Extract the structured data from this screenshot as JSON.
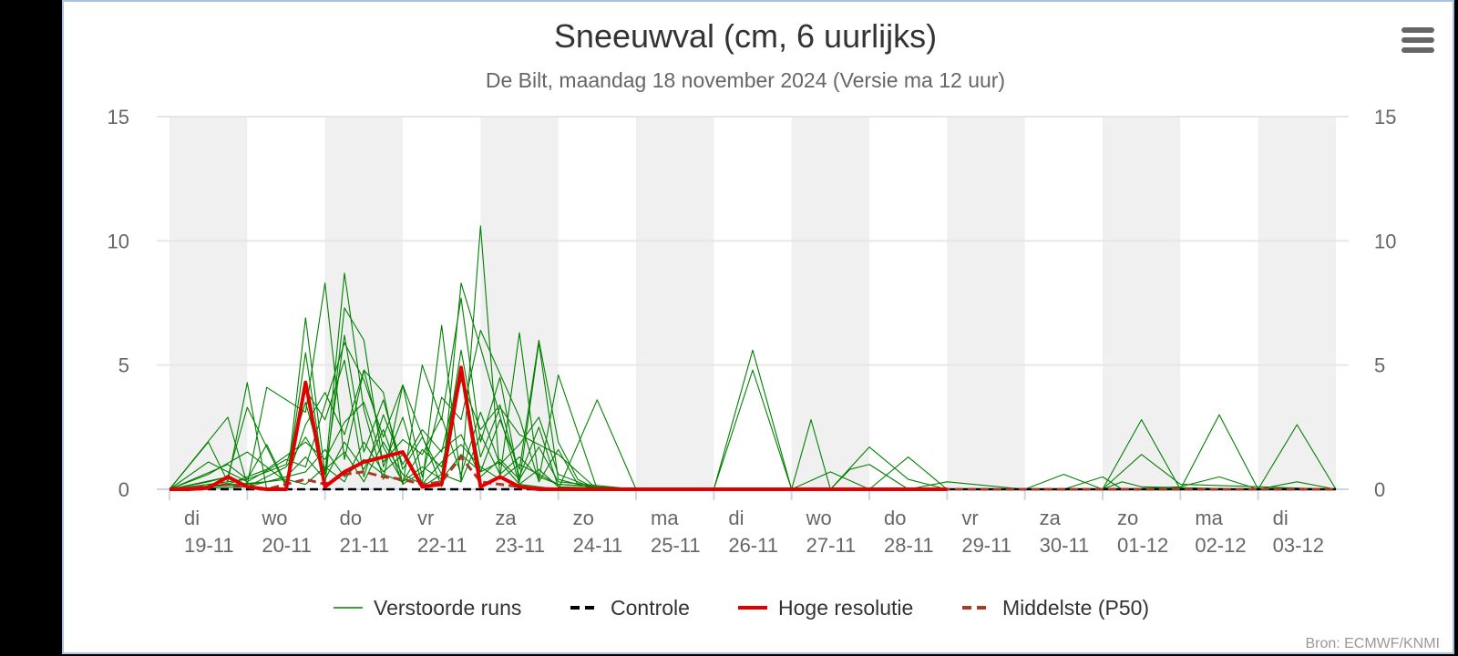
{
  "menu_icon": "hamburger-menu-icon",
  "colors": {
    "perturbed": "#008000",
    "control": "#000000",
    "high_res": "#e00000",
    "median": "#a83a2a",
    "band": "#f0f0f0",
    "grid": "#e6e6e6"
  },
  "chart_data": {
    "type": "line",
    "title": "Sneeuwval (cm, 6 uurlijks)",
    "subtitle": "De Bilt, maandag 18 november 2024 (Versie ma 12 uur)",
    "credit": "Bron: ECMWF/KNMI",
    "ylim": [
      0,
      15
    ],
    "yticks": [
      0,
      5,
      10,
      15
    ],
    "x_unit": "days from 18-11 12:00",
    "x_start": 0,
    "x_end": 15.0,
    "grid": true,
    "legend_position": "bottom",
    "days": [
      {
        "wd": "di",
        "date": "19-11"
      },
      {
        "wd": "wo",
        "date": "20-11"
      },
      {
        "wd": "do",
        "date": "21-11"
      },
      {
        "wd": "vr",
        "date": "22-11"
      },
      {
        "wd": "za",
        "date": "23-11"
      },
      {
        "wd": "zo",
        "date": "24-11"
      },
      {
        "wd": "ma",
        "date": "25-11"
      },
      {
        "wd": "di",
        "date": "26-11"
      },
      {
        "wd": "wo",
        "date": "27-11"
      },
      {
        "wd": "do",
        "date": "28-11"
      },
      {
        "wd": "vr",
        "date": "29-11"
      },
      {
        "wd": "za",
        "date": "30-11"
      },
      {
        "wd": "zo",
        "date": "01-12"
      },
      {
        "wd": "ma",
        "date": "02-12"
      },
      {
        "wd": "di",
        "date": "03-12"
      }
    ],
    "legend": [
      {
        "key": "perturbed",
        "label": "Verstoorde runs",
        "style": "thin"
      },
      {
        "key": "control",
        "label": "Controle",
        "style": "dash"
      },
      {
        "key": "high_res",
        "label": "Hoge resolutie",
        "style": "thick"
      },
      {
        "key": "median",
        "label": "Middelste (P50)",
        "style": "dash"
      }
    ],
    "series": [
      {
        "key": "high_res",
        "x": [
          0,
          0.25,
          0.5,
          0.75,
          1.0,
          1.25,
          1.5,
          1.75,
          2.0,
          2.25,
          2.5,
          2.75,
          3.0,
          3.25,
          3.5,
          3.75,
          4.0,
          4.25,
          4.5,
          4.75,
          5.0,
          6.0,
          7.0,
          8.0,
          9.0,
          10.0
        ],
        "y": [
          0,
          0,
          0.05,
          0.5,
          0.1,
          0,
          0,
          4.3,
          0.1,
          0.7,
          1.1,
          1.3,
          1.5,
          0.1,
          0.2,
          4.9,
          0.1,
          0.5,
          0.1,
          0,
          0,
          0,
          0,
          0,
          0,
          0
        ]
      },
      {
        "key": "median",
        "x": [
          0,
          0.75,
          1.25,
          1.75,
          2.0,
          2.25,
          2.5,
          2.75,
          3.0,
          3.25,
          3.5,
          3.75,
          4.0,
          4.25,
          4.5,
          5.0,
          15.0
        ],
        "y": [
          0,
          0.2,
          0,
          0.4,
          0.2,
          0.6,
          0.7,
          0.5,
          0.4,
          0.2,
          0.3,
          1.3,
          0.3,
          0.2,
          0.1,
          0,
          0
        ]
      },
      {
        "key": "control",
        "x": [
          0,
          15.0
        ],
        "y": [
          0,
          0
        ]
      },
      {
        "key": "perturbed",
        "x": [
          0,
          0.5,
          0.75,
          1.0,
          1.25,
          1.5,
          1.75,
          2.0,
          2.25,
          2.5,
          2.75,
          3.0,
          3.5,
          3.75,
          4.0,
          4.5,
          5.0,
          5.5,
          6.0,
          6.5,
          7.0,
          7.5,
          8.0,
          8.5,
          9.0,
          9.5,
          10.0,
          11.0,
          12.0,
          12.5,
          13.0,
          13.5,
          14.0,
          14.5,
          15.0
        ],
        "y": [
          0,
          1.9,
          0.3,
          4.3,
          0,
          0,
          6.9,
          0.6,
          8.7,
          3.2,
          0.4,
          4.2,
          0.1,
          8.3,
          5.7,
          0.2,
          0,
          3.6,
          0,
          0,
          0,
          5.6,
          0,
          0,
          0,
          1.3,
          0,
          0,
          0,
          2.8,
          0,
          3.0,
          0,
          2.6,
          0
        ]
      },
      {
        "key": "perturbed",
        "x": [
          0,
          0.5,
          0.75,
          1.0,
          1.5,
          1.75,
          2.0,
          2.25,
          2.5,
          2.75,
          3.0,
          3.25,
          3.5,
          3.75,
          4.0,
          4.25,
          4.5,
          4.75,
          5.0,
          5.5,
          6.0,
          7.0,
          7.5,
          8.0,
          8.5,
          9.0,
          15.0
        ],
        "y": [
          0,
          0.3,
          0.5,
          3.3,
          0.1,
          5.5,
          0.2,
          7.3,
          6.0,
          0.9,
          2.9,
          0.2,
          6.6,
          0.3,
          10.6,
          0.5,
          6.3,
          0.4,
          4.6,
          0,
          0,
          0,
          4.8,
          0,
          0,
          0,
          0
        ]
      },
      {
        "key": "perturbed",
        "x": [
          0,
          0.75,
          1.0,
          1.25,
          1.75,
          2.0,
          2.25,
          2.5,
          2.75,
          3.0,
          3.25,
          3.5,
          3.75,
          4.0,
          4.25,
          4.5,
          4.75,
          5.0,
          5.5,
          6.0,
          8.0,
          8.25,
          8.5,
          8.75,
          9.0,
          9.5,
          10.0,
          11.0,
          11.5,
          12.0,
          12.5,
          13.0,
          15.0
        ],
        "y": [
          0,
          2.9,
          0.2,
          4.1,
          3.1,
          8.3,
          1.2,
          4.8,
          3.9,
          0.2,
          5.0,
          2.8,
          7.7,
          1.9,
          4.5,
          0.3,
          5.9,
          0.4,
          0,
          0,
          0,
          2.8,
          0,
          0.8,
          1.0,
          0,
          0.3,
          0,
          0.6,
          0,
          1.4,
          0.2,
          0
        ]
      },
      {
        "key": "perturbed",
        "x": [
          0,
          0.5,
          1.0,
          1.5,
          1.75,
          2.0,
          2.25,
          2.5,
          2.75,
          3.0,
          3.25,
          3.5,
          3.75,
          4.0,
          4.5,
          4.75,
          5.0,
          5.25,
          5.5,
          6.0,
          8.5,
          9.0,
          9.5,
          10.0,
          12.0,
          12.25,
          12.5,
          14.0,
          15.0
        ],
        "y": [
          0,
          1.1,
          0.3,
          1.2,
          0.9,
          3.4,
          5.9,
          4.4,
          2.1,
          4.2,
          0.5,
          3.7,
          2.8,
          6.4,
          2.9,
          0.3,
          1.6,
          0.2,
          0,
          0,
          0,
          1.7,
          0.4,
          0,
          0,
          0.3,
          0.1,
          0,
          0
        ]
      },
      {
        "key": "perturbed",
        "x": [
          0,
          1.0,
          1.5,
          1.75,
          2.0,
          2.25,
          2.5,
          2.75,
          3.0,
          3.25,
          3.5,
          3.75,
          4.0,
          4.25,
          4.5,
          5.0,
          5.5,
          6.0,
          8.0,
          8.5,
          9.0,
          15.0
        ],
        "y": [
          0,
          0.4,
          1.0,
          3.5,
          0.6,
          6.2,
          1.5,
          3.6,
          0.8,
          2.1,
          0.6,
          5.6,
          1.3,
          3.3,
          2.2,
          1.4,
          0,
          0,
          0,
          0.7,
          0,
          0
        ]
      },
      {
        "key": "perturbed",
        "x": [
          0,
          0.75,
          1.0,
          1.25,
          1.5,
          1.75,
          2.0,
          2.25,
          2.5,
          2.75,
          3.0,
          3.25,
          3.5,
          3.75,
          4.0,
          4.25,
          4.5,
          4.75,
          5.0,
          5.25,
          5.5,
          6.0,
          11.5,
          12.0,
          12.25,
          13.0,
          13.5,
          14.0,
          14.5,
          15.0
        ],
        "y": [
          0,
          1.0,
          0.4,
          1.8,
          0.2,
          4.0,
          2.8,
          5.2,
          0.5,
          3.0,
          1.0,
          2.4,
          1.5,
          4.9,
          0.7,
          2.8,
          0.8,
          6.0,
          1.9,
          0.4,
          0,
          0,
          0,
          0.5,
          0,
          0.1,
          0.5,
          0,
          0.3,
          0
        ]
      },
      {
        "key": "perturbed",
        "x": [
          0,
          0.5,
          1.0,
          1.5,
          1.75,
          2.0,
          2.25,
          2.5,
          2.75,
          3.0,
          3.25,
          3.5,
          3.75,
          4.0,
          4.25,
          4.5,
          4.75,
          5.0,
          5.5,
          6.0,
          15.0
        ],
        "y": [
          0,
          0.6,
          1.5,
          0.3,
          2.6,
          3.9,
          2.2,
          4.8,
          1.7,
          0.3,
          1.6,
          0.9,
          4.4,
          2.4,
          3.4,
          0.5,
          2.5,
          0.1,
          0,
          0,
          0
        ]
      },
      {
        "key": "perturbed",
        "x": [
          0,
          0.75,
          1.25,
          1.75,
          2.0,
          2.25,
          2.5,
          2.75,
          3.0,
          3.25,
          3.5,
          3.75,
          4.0,
          4.25,
          4.5,
          4.75,
          5.0,
          5.5,
          6.0,
          15.0
        ],
        "y": [
          0,
          0.2,
          0.8,
          1.9,
          1.2,
          2.7,
          3.5,
          1.1,
          2.0,
          1.4,
          2.9,
          0.6,
          3.1,
          1.0,
          1.8,
          2.9,
          0.6,
          0,
          0,
          0
        ]
      },
      {
        "key": "perturbed",
        "x": [
          0,
          1.0,
          1.5,
          1.75,
          2.0,
          2.25,
          2.5,
          2.75,
          3.0,
          3.25,
          3.5,
          3.75,
          4.0,
          4.25,
          4.5,
          4.75,
          5.0,
          6.0,
          15.0
        ],
        "y": [
          0,
          0.1,
          0.5,
          1.3,
          0.4,
          1.9,
          0.8,
          2.4,
          0.2,
          0.7,
          1.6,
          2.2,
          0.5,
          1.2,
          0.4,
          1.7,
          0.3,
          0,
          0
        ]
      },
      {
        "key": "perturbed",
        "x": [
          0,
          0.75,
          1.0,
          1.5,
          1.75,
          2.0,
          2.25,
          2.5,
          2.75,
          3.0,
          3.25,
          3.5,
          3.75,
          4.0,
          4.25,
          4.5,
          5.0,
          6.0,
          15.0
        ],
        "y": [
          0,
          0.5,
          0.1,
          0.9,
          2.1,
          0.8,
          1.5,
          0.3,
          1.9,
          0.6,
          0.2,
          1.1,
          1.8,
          0.9,
          0.4,
          1.0,
          0.2,
          0,
          0
        ]
      },
      {
        "key": "perturbed",
        "x": [
          0,
          1.25,
          1.75,
          2.0,
          2.25,
          2.5,
          2.75,
          3.0,
          3.25,
          3.5,
          3.75,
          4.0,
          4.25,
          4.5,
          4.75,
          5.0,
          6.0,
          15.0
        ],
        "y": [
          0,
          0.3,
          0.7,
          1.6,
          0.5,
          1.2,
          0.6,
          0.3,
          0.9,
          0.4,
          1.4,
          0.7,
          1.1,
          0.2,
          0.8,
          0.1,
          0,
          0
        ]
      },
      {
        "key": "perturbed",
        "x": [
          0,
          1.0,
          1.5,
          1.75,
          2.0,
          2.25,
          2.5,
          2.75,
          3.0,
          3.25,
          3.5,
          3.75,
          4.0,
          4.25,
          4.5,
          4.75,
          5.0,
          6.0,
          15.0
        ],
        "y": [
          0,
          0.2,
          0.4,
          0.2,
          0.9,
          0.3,
          1.9,
          0.7,
          1.4,
          0.1,
          0.6,
          0.3,
          2.2,
          0.6,
          1.3,
          0.5,
          0.2,
          0,
          0
        ]
      }
    ]
  }
}
